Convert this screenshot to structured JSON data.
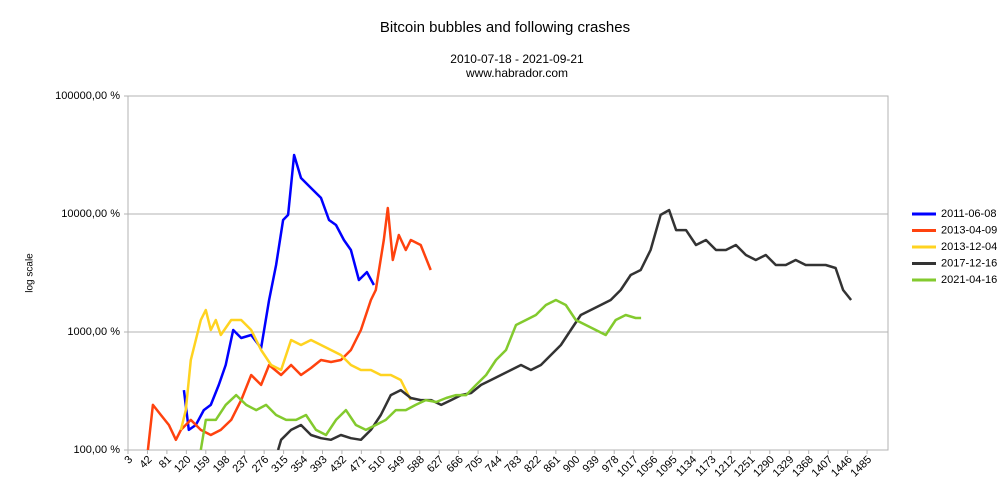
{
  "chart_data": {
    "type": "line",
    "title": "Bitcoin bubbles and following crashes",
    "subtitle": "2010-07-18 - 2021-09-21",
    "source": "www.habrador.com",
    "y_label": "log scale",
    "log_scale": true,
    "grid": true,
    "legend": "right",
    "xlim": [
      3,
      1527
    ],
    "xticks": [
      3,
      42,
      81,
      120,
      159,
      198,
      237,
      276,
      315,
      354,
      393,
      432,
      471,
      510,
      549,
      588,
      627,
      666,
      705,
      744,
      783,
      822,
      861,
      900,
      939,
      978,
      1017,
      1056,
      1095,
      1134,
      1173,
      1212,
      1251,
      1290,
      1329,
      1368,
      1407,
      1446,
      1485
    ],
    "ylim": [
      100,
      100000
    ],
    "yticks": [
      {
        "value": 100,
        "label": "100,00 %"
      },
      {
        "value": 1000,
        "label": "1000,00 %"
      },
      {
        "value": 10000,
        "label": "10000,00 %"
      },
      {
        "value": 100000,
        "label": "100000,00 %"
      }
    ],
    "series": [
      {
        "name": "2011-06-08",
        "color": "#0000ff",
        "x": [
          115,
          125,
          139,
          155,
          169,
          185,
          199,
          214,
          230,
          250,
          270,
          286,
          300,
          314,
          324,
          336,
          350,
          370,
          390,
          406,
          420,
          436,
          450,
          466,
          482,
          496
        ],
        "values": [
          322,
          148,
          163,
          218,
          241,
          356,
          525,
          1040,
          890,
          944,
          731,
          1867,
          3698,
          8893,
          9817,
          31600,
          20200,
          16600,
          13700,
          8890,
          8070,
          6020,
          4950,
          2760,
          3220,
          2500
        ]
      },
      {
        "name": "2013-04-09",
        "color": "#ff420e",
        "x": [
          43,
          53,
          69,
          85,
          99,
          109,
          129,
          149,
          169,
          189,
          210,
          230,
          250,
          270,
          286,
          310,
          330,
          350,
          370,
          390,
          410,
          430,
          450,
          470,
          490,
          500,
          516,
          524,
          534,
          546,
          560,
          570,
          590,
          610
        ],
        "values": [
          100,
          241,
          198,
          163,
          122,
          148,
          180,
          148,
          134,
          148,
          180,
          265,
          432,
          356,
          525,
          432,
          525,
          432,
          495,
          579,
          557,
          579,
          704,
          1040,
          1867,
          2270,
          6020,
          11250,
          4074,
          6640,
          4950,
          6020,
          5460,
          3350
        ]
      },
      {
        "name": "2013-12-04",
        "color": "#ffd320",
        "x": [
          109,
          119,
          129,
          139,
          149,
          159,
          169,
          179,
          189,
          210,
          230,
          250,
          270,
          290,
          310,
          330,
          350,
          370,
          390,
          410,
          430,
          450,
          470,
          490,
          510,
          530,
          550,
          570
        ],
        "values": [
          148,
          218,
          579,
          855,
          1264,
          1536,
          1040,
          1264,
          944,
          1264,
          1264,
          1040,
          704,
          525,
          476,
          855,
          776,
          855,
          776,
          704,
          638,
          525,
          476,
          476,
          432,
          432,
          392,
          265
        ]
      },
      {
        "name": "2017-12-16",
        "color": "#333333",
        "x": [
          304,
          310,
          330,
          350,
          370,
          390,
          410,
          430,
          450,
          470,
          490,
          510,
          530,
          550,
          570,
          590,
          611,
          631,
          651,
          671,
          691,
          711,
          731,
          751,
          771,
          791,
          811,
          831,
          851,
          871,
          891,
          911,
          931,
          951,
          971,
          991,
          1011,
          1031,
          1051,
          1071,
          1088,
          1102,
          1122,
          1142,
          1162,
          1182,
          1202,
          1222,
          1242,
          1262,
          1282,
          1302,
          1322,
          1342,
          1362,
          1382,
          1402,
          1422,
          1437,
          1453
        ],
        "values": [
          100,
          122,
          148,
          163,
          134,
          126,
          122,
          134,
          126,
          122,
          148,
          198,
          292,
          322,
          276,
          265,
          265,
          241,
          265,
          292,
          304,
          356,
          392,
          432,
          476,
          525,
          476,
          525,
          638,
          776,
          1040,
          1393,
          1536,
          1693,
          1867,
          2270,
          3040,
          3350,
          4950,
          9817,
          10800,
          7310,
          7310,
          5460,
          6020,
          4950,
          4950,
          5460,
          4497,
          4074,
          4497,
          3698,
          3698,
          4074,
          3698,
          3698,
          3698,
          3486,
          2270,
          1867
        ]
      },
      {
        "name": "2021-04-16",
        "color": "#83ca2e",
        "x": [
          149,
          159,
          179,
          199,
          220,
          240,
          260,
          280,
          300,
          320,
          340,
          360,
          380,
          400,
          420,
          440,
          460,
          480,
          500,
          520,
          540,
          560,
          580,
          600,
          621,
          641,
          661,
          681,
          701,
          721,
          741,
          761,
          781,
          801,
          821,
          841,
          861,
          881,
          901,
          921,
          941,
          961,
          981,
          1001,
          1021,
          1032
        ],
        "values": [
          100,
          180,
          180,
          241,
          292,
          241,
          218,
          241,
          198,
          180,
          180,
          198,
          148,
          134,
          180,
          218,
          163,
          148,
          163,
          180,
          218,
          218,
          241,
          265,
          255,
          276,
          292,
          292,
          356,
          432,
          579,
          704,
          1146,
          1264,
          1393,
          1693,
          1867,
          1693,
          1264,
          1146,
          1040,
          944,
          1264,
          1393,
          1314,
          1314
        ]
      }
    ]
  }
}
